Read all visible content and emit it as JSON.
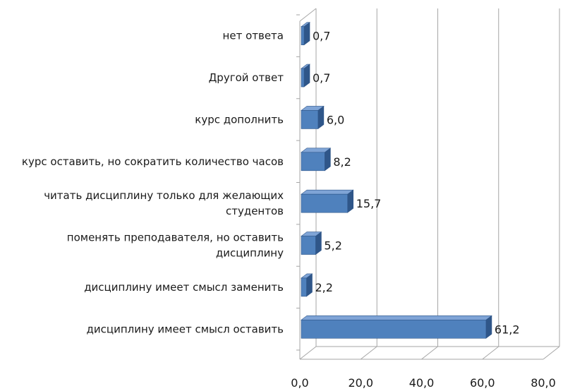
{
  "chart_data": {
    "type": "bar",
    "orientation": "horizontal",
    "style": "3d",
    "title": "",
    "xlabel": "",
    "ylabel": "",
    "xlim": [
      0,
      80
    ],
    "x_ticks": [
      "0,0",
      "20,0",
      "40,0",
      "60,0",
      "80,0"
    ],
    "grid": "vertical",
    "legend": "none",
    "categories": [
      "нет ответа",
      "Другой ответ",
      "курс дополнить",
      "курс оставить, но сократить количество часов",
      "читать дисциплину только для желающих студентов",
      "поменять преподавателя, но оставить дисциплину",
      "дисциплину имеет смысл заменить",
      "дисциплину имеет смысл оставить"
    ],
    "category_lines": [
      [
        "нет ответа"
      ],
      [
        "Другой ответ"
      ],
      [
        "курс дополнить"
      ],
      [
        "курс оставить, но сократить количество часов"
      ],
      [
        "читать дисциплину только для желающих",
        "студентов"
      ],
      [
        "поменять преподавателя, но оставить",
        "дисциплину"
      ],
      [
        "дисциплину имеет смысл заменить"
      ],
      [
        "дисциплину имеет смысл оставить"
      ]
    ],
    "values": [
      0.7,
      0.7,
      6.0,
      8.2,
      15.7,
      5.2,
      2.2,
      61.2
    ],
    "value_labels": [
      "0,7",
      "0,7",
      "6,0",
      "8,2",
      "15,7",
      "5,2",
      "2,2",
      "61,2"
    ],
    "colors": {
      "bar_front": "#4f81bd",
      "bar_top": "#7fa4d6",
      "bar_side": "#2f5689",
      "grid": "#a6a6a6"
    }
  }
}
